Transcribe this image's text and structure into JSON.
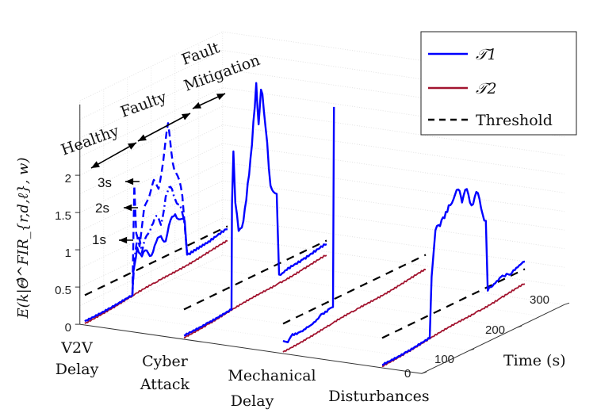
{
  "chart_data": {
    "type": "line",
    "title": "",
    "ylabel": "E(k|Θ̂^FIR_{r,d,ℓ}, w)",
    "xlabel": "Time (s)",
    "zlim": [
      0,
      2.5
    ],
    "z_ticks": [
      "0",
      "0.5",
      "1",
      "1.5",
      "2"
    ],
    "time_ticks": [
      "0",
      "100",
      "200",
      "300"
    ],
    "categories": [
      [
        "V2V",
        "Delay"
      ],
      [
        "Cyber",
        "Attack"
      ],
      [
        "Mechanical",
        "Delay"
      ],
      [
        "Disturbances"
      ]
    ],
    "legend": {
      "position": "top-right",
      "entries": [
        "𝒯1",
        "𝒯2",
        "Threshold"
      ]
    },
    "colors": {
      "T1": "#0000ff",
      "T2": "#a2142f",
      "threshold": "#000000"
    },
    "threshold": 0.4,
    "annotations": {
      "healthy": "Healthy",
      "faulty": "Faulty",
      "mitigation1": "Fault",
      "mitigation2": "Mitigation",
      "s3": "3s",
      "s2": "2s",
      "s1": "1s"
    },
    "series": [
      {
        "name": "T2",
        "category": 0,
        "t": [
          0,
          50,
          100,
          150,
          200,
          250,
          300
        ],
        "z": [
          0.02,
          0.05,
          0.08,
          0.11,
          0.14,
          0.17,
          0.2
        ]
      },
      {
        "name": "T1 (1s)",
        "category": 0,
        "t": [
          0,
          50,
          100,
          102,
          110,
          120,
          130,
          140,
          150,
          160,
          170,
          180,
          190,
          200,
          210,
          215,
          230,
          260,
          300
        ],
        "z": [
          0.05,
          0.07,
          0.09,
          0.4,
          0.7,
          0.55,
          0.6,
          0.5,
          0.65,
          0.7,
          0.6,
          0.85,
          0.9,
          0.8,
          0.75,
          0.28,
          0.3,
          0.32,
          0.36
        ]
      },
      {
        "name": "T1 (2s)",
        "category": 0,
        "t": [
          100,
          105,
          112,
          120,
          130,
          140,
          150,
          160,
          170,
          180,
          190,
          200,
          210,
          215
        ],
        "z": [
          0.1,
          0.6,
          0.85,
          0.6,
          0.8,
          0.9,
          1.0,
          0.85,
          1.2,
          1.3,
          1.1,
          1.0,
          0.7,
          0.3
        ]
      },
      {
        "name": "T1 (3s)",
        "category": 0,
        "t": [
          100,
          104,
          108,
          115,
          125,
          135,
          145,
          155,
          165,
          175,
          185,
          195,
          205,
          215
        ],
        "z": [
          0.1,
          1.55,
          0.9,
          0.7,
          1.2,
          1.3,
          1.5,
          1.35,
          1.7,
          2.17,
          1.6,
          1.4,
          1.1,
          0.3
        ]
      },
      {
        "name": "T2",
        "category": 1,
        "t": [
          0,
          50,
          100,
          150,
          200,
          250,
          300
        ],
        "z": [
          0.02,
          0.05,
          0.08,
          0.11,
          0.14,
          0.17,
          0.2
        ]
      },
      {
        "name": "T1",
        "category": 1,
        "t": [
          0,
          50,
          100,
          101,
          104,
          108,
          115,
          125,
          140,
          152,
          157,
          162,
          168,
          175,
          182,
          188,
          195,
          200,
          210,
          250,
          300
        ],
        "z": [
          0.05,
          0.07,
          0.09,
          1.5,
          2.2,
          1.5,
          1.1,
          1.2,
          2.0,
          2.97,
          2.4,
          2.85,
          2.55,
          2.1,
          1.5,
          1.4,
          1.35,
          0.25,
          0.25,
          0.3,
          0.35
        ]
      },
      {
        "name": "T2",
        "category": 2,
        "t": [
          0,
          50,
          100,
          150,
          200,
          250,
          300
        ],
        "z": [
          0.02,
          0.05,
          0.08,
          0.11,
          0.14,
          0.17,
          0.2
        ]
      },
      {
        "name": "T1",
        "category": 2,
        "t": [
          0,
          10,
          20,
          35,
          50,
          65,
          80,
          95,
          105,
          107
        ],
        "z": [
          0.17,
          0.12,
          0.2,
          0.18,
          0.2,
          0.22,
          0.28,
          0.3,
          0.3,
          2.98
        ]
      },
      {
        "name": "T2",
        "category": 3,
        "t": [
          0,
          50,
          100,
          150,
          200,
          250,
          300
        ],
        "z": [
          0.02,
          0.05,
          0.08,
          0.11,
          0.14,
          0.17,
          0.2
        ]
      },
      {
        "name": "T1",
        "category": 3,
        "t": [
          0,
          50,
          100,
          104,
          112,
          125,
          140,
          150,
          160,
          168,
          178,
          188,
          198,
          208,
          218,
          222,
          235,
          250,
          270,
          300
        ],
        "z": [
          0.04,
          0.06,
          0.09,
          0.9,
          1.5,
          1.6,
          1.75,
          1.8,
          1.9,
          1.7,
          1.85,
          1.6,
          1.75,
          1.5,
          1.3,
          0.35,
          0.4,
          0.45,
          0.42,
          0.5
        ]
      }
    ]
  }
}
